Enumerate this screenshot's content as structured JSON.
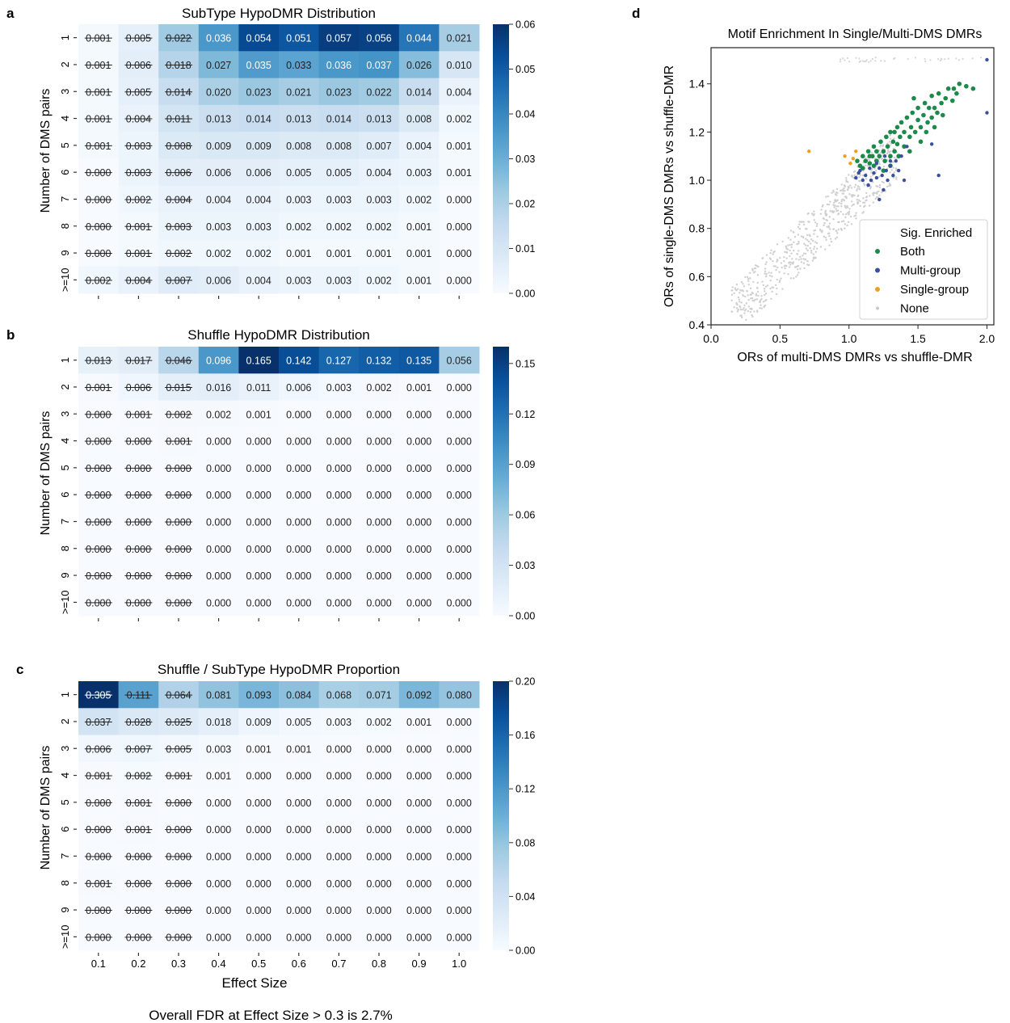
{
  "figure": {
    "footnote": "Overall FDR at Effect Size > 0.3 is 2.7%"
  },
  "chart_data": [
    {
      "panel": "a",
      "type": "heatmap",
      "title": "SubType HypoDMR Distribution",
      "ylabel": "Number of DMS pairs",
      "xlabel": "",
      "x_ticks": [
        "0.1",
        "0.2",
        "0.3",
        "0.4",
        "0.5",
        "0.6",
        "0.7",
        "0.8",
        "0.9",
        "1.0"
      ],
      "show_x_tick_labels": false,
      "y_ticks": [
        "1",
        "2",
        "3",
        "4",
        "5",
        "6",
        "7",
        "8",
        "9",
        ">=10"
      ],
      "colorbar": {
        "min": 0,
        "max": 0.06,
        "ticks": [
          "0.00",
          "0.01",
          "0.02",
          "0.03",
          "0.04",
          "0.05",
          "0.06"
        ]
      },
      "strikethrough_columns": 3,
      "colormap": "Blues",
      "values": [
        [
          0.001,
          0.005,
          0.022,
          0.036,
          0.054,
          0.051,
          0.057,
          0.056,
          0.044,
          0.021
        ],
        [
          0.001,
          0.006,
          0.018,
          0.027,
          0.035,
          0.033,
          0.036,
          0.037,
          0.026,
          0.01
        ],
        [
          0.001,
          0.005,
          0.014,
          0.02,
          0.023,
          0.021,
          0.023,
          0.022,
          0.014,
          0.004
        ],
        [
          0.001,
          0.004,
          0.011,
          0.013,
          0.014,
          0.013,
          0.014,
          0.013,
          0.008,
          0.002
        ],
        [
          0.001,
          0.003,
          0.008,
          0.009,
          0.009,
          0.008,
          0.008,
          0.007,
          0.004,
          0.001
        ],
        [
          0.0,
          0.003,
          0.006,
          0.006,
          0.006,
          0.005,
          0.005,
          0.004,
          0.003,
          0.001
        ],
        [
          0.0,
          0.002,
          0.004,
          0.004,
          0.004,
          0.003,
          0.003,
          0.003,
          0.002,
          0.0
        ],
        [
          0.0,
          0.001,
          0.003,
          0.003,
          0.003,
          0.002,
          0.002,
          0.002,
          0.001,
          0.0
        ],
        [
          0.0,
          0.001,
          0.002,
          0.002,
          0.002,
          0.001,
          0.001,
          0.001,
          0.001,
          0.0
        ],
        [
          0.002,
          0.004,
          0.007,
          0.006,
          0.004,
          0.003,
          0.003,
          0.002,
          0.001,
          0.0
        ]
      ]
    },
    {
      "panel": "b",
      "type": "heatmap",
      "title": "Shuffle HypoDMR Distribution",
      "ylabel": "Number of DMS pairs",
      "xlabel": "",
      "x_ticks": [
        "0.1",
        "0.2",
        "0.3",
        "0.4",
        "0.5",
        "0.6",
        "0.7",
        "0.8",
        "0.9",
        "1.0"
      ],
      "show_x_tick_labels": false,
      "y_ticks": [
        "1",
        "2",
        "3",
        "4",
        "5",
        "6",
        "7",
        "8",
        "9",
        ">=10"
      ],
      "colorbar": {
        "min": 0,
        "max": 0.16,
        "ticks": [
          "0.00",
          "0.03",
          "0.06",
          "0.09",
          "0.12",
          "0.15"
        ]
      },
      "strikethrough_columns": 3,
      "colormap": "Blues",
      "values": [
        [
          0.013,
          0.017,
          0.046,
          0.096,
          0.165,
          0.142,
          0.127,
          0.132,
          0.135,
          0.056
        ],
        [
          0.001,
          0.006,
          0.015,
          0.016,
          0.011,
          0.006,
          0.003,
          0.002,
          0.001,
          0.0
        ],
        [
          0.0,
          0.001,
          0.002,
          0.002,
          0.001,
          0.0,
          0.0,
          0.0,
          0.0,
          0.0
        ],
        [
          0.0,
          0.0,
          0.001,
          0.0,
          0.0,
          0.0,
          0.0,
          0.0,
          0.0,
          0.0
        ],
        [
          0.0,
          0.0,
          0.0,
          0.0,
          0.0,
          0.0,
          0.0,
          0.0,
          0.0,
          0.0
        ],
        [
          0.0,
          0.0,
          0.0,
          0.0,
          0.0,
          0.0,
          0.0,
          0.0,
          0.0,
          0.0
        ],
        [
          0.0,
          0.0,
          0.0,
          0.0,
          0.0,
          0.0,
          0.0,
          0.0,
          0.0,
          0.0
        ],
        [
          0.0,
          0.0,
          0.0,
          0.0,
          0.0,
          0.0,
          0.0,
          0.0,
          0.0,
          0.0
        ],
        [
          0.0,
          0.0,
          0.0,
          0.0,
          0.0,
          0.0,
          0.0,
          0.0,
          0.0,
          0.0
        ],
        [
          0.0,
          0.0,
          0.0,
          0.0,
          0.0,
          0.0,
          0.0,
          0.0,
          0.0,
          0.0
        ]
      ]
    },
    {
      "panel": "c",
      "type": "heatmap",
      "title": "Shuffle / SubType HypoDMR Proportion",
      "ylabel": "Number of DMS pairs",
      "xlabel": "Effect Size",
      "x_ticks": [
        "0.1",
        "0.2",
        "0.3",
        "0.4",
        "0.5",
        "0.6",
        "0.7",
        "0.8",
        "0.9",
        "1.0"
      ],
      "show_x_tick_labels": true,
      "y_ticks": [
        "1",
        "2",
        "3",
        "4",
        "5",
        "6",
        "7",
        "8",
        "9",
        ">=10"
      ],
      "colorbar": {
        "min": 0,
        "max": 0.2,
        "ticks": [
          "0.00",
          "0.04",
          "0.08",
          "0.12",
          "0.16",
          "0.20"
        ]
      },
      "strikethrough_columns": 3,
      "colormap": "Blues",
      "values": [
        [
          0.305,
          0.111,
          0.064,
          0.081,
          0.093,
          0.084,
          0.068,
          0.071,
          0.092,
          0.08
        ],
        [
          0.037,
          0.028,
          0.025,
          0.018,
          0.009,
          0.005,
          0.003,
          0.002,
          0.001,
          0.0
        ],
        [
          0.006,
          0.007,
          0.005,
          0.003,
          0.001,
          0.001,
          0.0,
          0.0,
          0.0,
          0.0
        ],
        [
          0.001,
          0.002,
          0.001,
          0.001,
          0.0,
          0.0,
          0.0,
          0.0,
          0.0,
          0.0
        ],
        [
          0.0,
          0.001,
          0.0,
          0.0,
          0.0,
          0.0,
          0.0,
          0.0,
          0.0,
          0.0
        ],
        [
          0.0,
          0.001,
          0.0,
          0.0,
          0.0,
          0.0,
          0.0,
          0.0,
          0.0,
          0.0
        ],
        [
          0.0,
          0.0,
          0.0,
          0.0,
          0.0,
          0.0,
          0.0,
          0.0,
          0.0,
          0.0
        ],
        [
          0.001,
          0.0,
          0.0,
          0.0,
          0.0,
          0.0,
          0.0,
          0.0,
          0.0,
          0.0
        ],
        [
          0.0,
          0.0,
          0.0,
          0.0,
          0.0,
          0.0,
          0.0,
          0.0,
          0.0,
          0.0
        ],
        [
          0.0,
          0.0,
          0.0,
          0.0,
          0.0,
          0.0,
          0.0,
          0.0,
          0.0,
          0.0
        ]
      ]
    },
    {
      "panel": "d",
      "type": "scatter",
      "title": "Motif Enrichment In Single/Multi-DMS DMRs",
      "xlabel": "ORs of multi-DMS DMRs vs shuffle-DMR",
      "ylabel": "ORs of single-DMS DMRs vs shuffle-DMR",
      "xlim": [
        0.0,
        2.05
      ],
      "ylim": [
        0.4,
        1.55
      ],
      "x_ticks": [
        "0.0",
        "0.5",
        "1.0",
        "1.5",
        "2.0"
      ],
      "y_ticks": [
        "0.4",
        "0.6",
        "0.8",
        "1.0",
        "1.2",
        "1.4"
      ],
      "legend": {
        "title": "Sig. Enriched",
        "placement": "lower-right"
      },
      "series": [
        {
          "name": "Both",
          "color": "#1b8a4a",
          "points": [
            [
              1.06,
              1.08
            ],
            [
              1.08,
              1.06
            ],
            [
              1.1,
              1.1
            ],
            [
              1.12,
              1.08
            ],
            [
              1.14,
              1.12
            ],
            [
              1.15,
              1.07
            ],
            [
              1.17,
              1.1
            ],
            [
              1.18,
              1.14
            ],
            [
              1.2,
              1.08
            ],
            [
              1.2,
              1.12
            ],
            [
              1.22,
              1.1
            ],
            [
              1.23,
              1.16
            ],
            [
              1.25,
              1.12
            ],
            [
              1.26,
              1.08
            ],
            [
              1.27,
              1.18
            ],
            [
              1.28,
              1.14
            ],
            [
              1.3,
              1.1
            ],
            [
              1.3,
              1.2
            ],
            [
              1.32,
              1.16
            ],
            [
              1.33,
              1.12
            ],
            [
              1.35,
              1.22
            ],
            [
              1.35,
              1.15
            ],
            [
              1.37,
              1.18
            ],
            [
              1.38,
              1.24
            ],
            [
              1.4,
              1.14
            ],
            [
              1.4,
              1.2
            ],
            [
              1.42,
              1.26
            ],
            [
              1.44,
              1.18
            ],
            [
              1.45,
              1.22
            ],
            [
              1.46,
              1.28
            ],
            [
              1.48,
              1.2
            ],
            [
              1.5,
              1.25
            ],
            [
              1.5,
              1.3
            ],
            [
              1.52,
              1.22
            ],
            [
              1.54,
              1.27
            ],
            [
              1.55,
              1.32
            ],
            [
              1.57,
              1.24
            ],
            [
              1.58,
              1.3
            ],
            [
              1.6,
              1.26
            ],
            [
              1.6,
              1.35
            ],
            [
              1.62,
              1.3
            ],
            [
              1.64,
              1.28
            ],
            [
              1.65,
              1.36
            ],
            [
              1.67,
              1.32
            ],
            [
              1.7,
              1.34
            ],
            [
              1.72,
              1.38
            ],
            [
              1.75,
              1.33
            ],
            [
              1.78,
              1.36
            ],
            [
              1.8,
              1.4
            ],
            [
              1.85,
              1.39
            ],
            [
              1.9,
              1.38
            ],
            [
              1.3,
              1.06
            ],
            [
              1.25,
              1.04
            ],
            [
              1.36,
              1.1
            ],
            [
              1.44,
              1.12
            ],
            [
              1.52,
              1.16
            ],
            [
              1.15,
              1.1
            ],
            [
              1.1,
              1.05
            ],
            [
              1.18,
              1.06
            ],
            [
              1.33,
              1.2
            ],
            [
              1.47,
              1.34
            ],
            [
              1.56,
              1.2
            ],
            [
              1.68,
              1.27
            ],
            [
              1.62,
              1.22
            ],
            [
              1.76,
              1.38
            ]
          ]
        },
        {
          "name": "Multi-group",
          "color": "#3a4f9e",
          "points": [
            [
              1.05,
              1.01
            ],
            [
              1.07,
              1.03
            ],
            [
              1.1,
              1.0
            ],
            [
              1.12,
              1.02
            ],
            [
              1.15,
              1.05
            ],
            [
              1.16,
              1.0
            ],
            [
              1.18,
              1.03
            ],
            [
              1.2,
              1.01
            ],
            [
              1.22,
              1.05
            ],
            [
              1.24,
              1.02
            ],
            [
              1.25,
              0.96
            ],
            [
              1.27,
              1.04
            ],
            [
              1.28,
              1.0
            ],
            [
              1.3,
              1.06
            ],
            [
              1.32,
              1.02
            ],
            [
              1.34,
              1.08
            ],
            [
              1.36,
              1.04
            ],
            [
              1.38,
              1.1
            ],
            [
              1.4,
              1.0
            ],
            [
              1.42,
              1.14
            ],
            [
              1.14,
              0.98
            ],
            [
              1.22,
              0.92
            ],
            [
              1.3,
              1.08
            ],
            [
              1.26,
              1.1
            ],
            [
              1.6,
              1.15
            ],
            [
              1.65,
              1.02
            ],
            [
              1.2,
              1.07
            ],
            [
              1.08,
              1.04
            ],
            [
              2.0,
              1.5
            ],
            [
              2.0,
              1.28
            ]
          ]
        },
        {
          "name": "Single-group",
          "color": "#f0a020",
          "points": [
            [
              0.71,
              1.12
            ],
            [
              0.97,
              1.1
            ],
            [
              1.03,
              1.09
            ],
            [
              1.01,
              1.07
            ],
            [
              1.05,
              1.12
            ]
          ]
        },
        {
          "name": "None",
          "color": "#c8c8c8",
          "points": []
        }
      ]
    }
  ]
}
